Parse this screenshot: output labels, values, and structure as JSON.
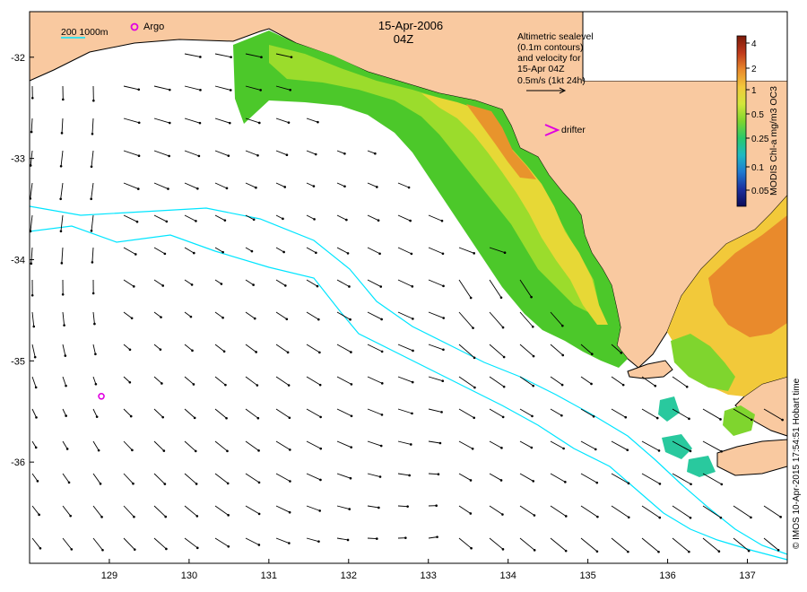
{
  "title": {
    "date": "15-Apr-2006",
    "time": "04Z"
  },
  "map_window": {
    "lon_min": 128.0,
    "lon_max": 137.5,
    "lat_min": -37.0,
    "lat_max": -31.55
  },
  "x_ticks": [
    129,
    130,
    131,
    132,
    133,
    134,
    135,
    136,
    137
  ],
  "y_ticks": [
    -32,
    -33,
    -34,
    -35,
    -36
  ],
  "legend_bathy": {
    "label": "200  1000m",
    "color": "#00e5ff"
  },
  "legend_argo": {
    "label": "Argo",
    "color": "#e000e0"
  },
  "legend_drifter": {
    "label": "drifter",
    "color": "#e000e0"
  },
  "annotation_lines": [
    "Altimetric sealevel",
    "(0.1m contours)",
    "and velocity for",
    "15-Apr 04Z",
    "0.5m/s (1kt 24h)"
  ],
  "colorbar": {
    "title": "MODIS Chl-a mg/m3 OC3",
    "ticks": [
      "4",
      "2",
      "1",
      "0.5",
      "0.25",
      "0.1",
      "0.05"
    ],
    "colors": [
      "#7a1a08",
      "#c0391b",
      "#e98a2c",
      "#f2c93a",
      "#d3e63a",
      "#7fd52e",
      "#29c96b",
      "#1fb9c2",
      "#2079d0",
      "#1b2f9e",
      "#0b0b58"
    ]
  },
  "credit": "© IMOS 10-Apr-2015 17:54:51 Hobart time",
  "argo_float": {
    "lon": 128.9,
    "lat": -35.35
  },
  "colors": {
    "land": "#f9c9a0",
    "bathy": "#00e5ff",
    "arrow": "#000000"
  }
}
